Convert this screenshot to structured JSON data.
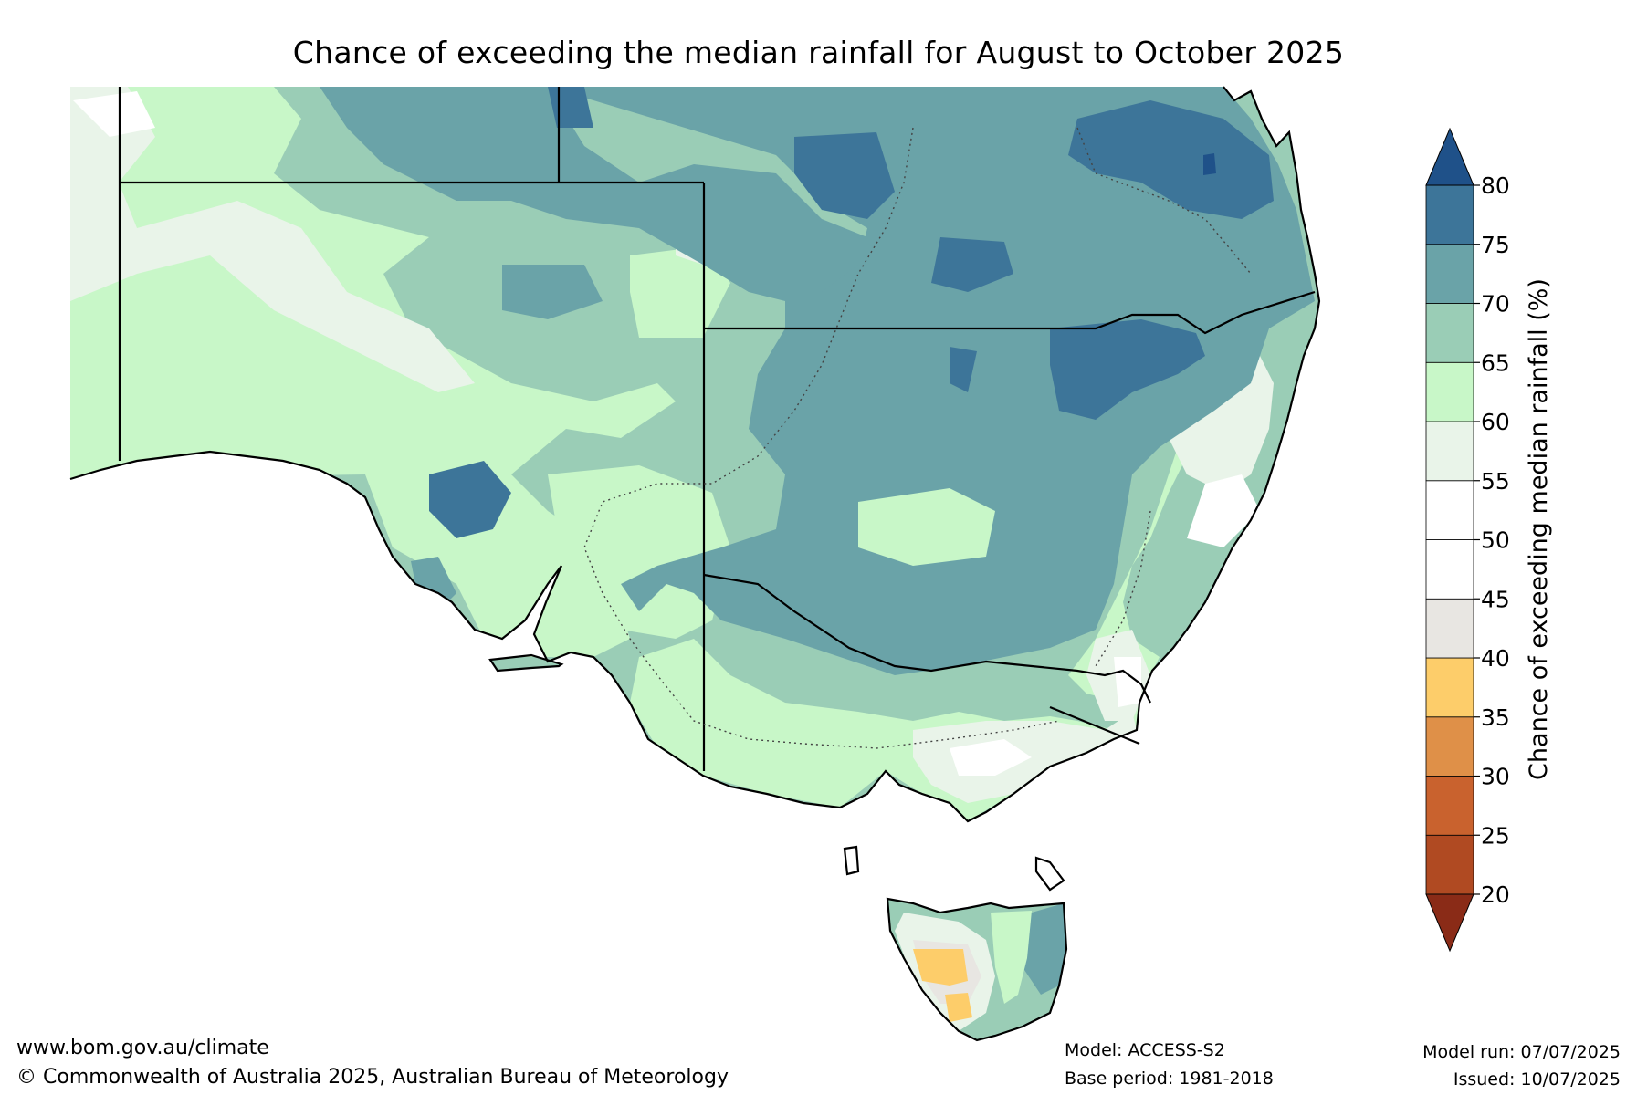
{
  "title": "Chance of exceeding the median rainfall for August to October 2025",
  "legend": {
    "label": "Chance of exceeding median rainfall (%)",
    "ticks": [
      "20",
      "25",
      "30",
      "35",
      "40",
      "45",
      "50",
      "55",
      "60",
      "65",
      "70",
      "75",
      "80"
    ],
    "bands": [
      {
        "from": 20,
        "to": 25,
        "color": "#b04a22"
      },
      {
        "from": 25,
        "to": 30,
        "color": "#c9622e"
      },
      {
        "from": 30,
        "to": 35,
        "color": "#df9048"
      },
      {
        "from": 35,
        "to": 40,
        "color": "#fdcd6a"
      },
      {
        "from": 40,
        "to": 45,
        "color": "#e8e6e2"
      },
      {
        "from": 45,
        "to": 50,
        "color": "#ffffff"
      },
      {
        "from": 50,
        "to": 55,
        "color": "#ffffff"
      },
      {
        "from": 55,
        "to": 60,
        "color": "#e9f4e9"
      },
      {
        "from": 60,
        "to": 65,
        "color": "#c8f7c8"
      },
      {
        "from": 65,
        "to": 70,
        "color": "#9acdb6"
      },
      {
        "from": 70,
        "to": 75,
        "color": "#6aa3a8"
      },
      {
        "from": 75,
        "to": 80,
        "color": "#3d7599"
      }
    ],
    "over_color": "#1f5189",
    "under_color": "#8a2b17"
  },
  "footer": {
    "url": "www.bom.gov.au/climate",
    "copyright": "© Commonwealth of Australia 2025, Australian Bureau of Meteorology",
    "model": "Model: ACCESS-S2",
    "base_period": "Base period: 1981-2018",
    "model_run": "Model run: 07/07/2025",
    "issued": "Issued: 10/07/2025"
  }
}
